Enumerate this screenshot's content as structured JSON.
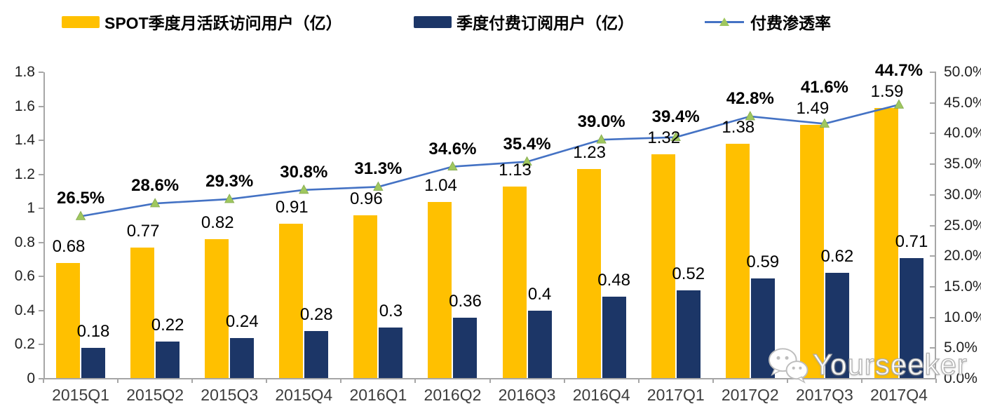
{
  "legend": {
    "items": [
      {
        "label": "SPOT季度月活跃访问用户（亿）",
        "swatch_color": "#FFC000"
      },
      {
        "label": "季度付费订阅用户（亿）",
        "swatch_color": "#1C3667"
      },
      {
        "label": "付费渗透率",
        "line_color": "#4472C4",
        "marker_color": "#9FC75F",
        "marker": "triangle-icon"
      }
    ]
  },
  "chart_data": {
    "type": "bar",
    "subtype": "bar-line-combo",
    "categories": [
      "2015Q1",
      "2015Q2",
      "2015Q3",
      "2015Q4",
      "2016Q1",
      "2016Q2",
      "2016Q3",
      "2016Q4",
      "2017Q1",
      "2017Q2",
      "2017Q3",
      "2017Q4"
    ],
    "series": [
      {
        "name": "SPOT季度月活跃访问用户（亿）",
        "chart_type": "bar",
        "color": "#FFC000",
        "values": [
          0.68,
          0.77,
          0.82,
          0.91,
          0.96,
          1.04,
          1.13,
          1.23,
          1.32,
          1.38,
          1.49,
          1.59
        ],
        "labels": [
          "0.68",
          "0.77",
          "0.82",
          "0.91",
          "0.96",
          "1.04",
          "1.13",
          "1.23",
          "1.32",
          "1.38",
          "1.49",
          "1.59"
        ]
      },
      {
        "name": "季度付费订阅用户（亿）",
        "chart_type": "bar",
        "color": "#1C3667",
        "values": [
          0.18,
          0.22,
          0.24,
          0.28,
          0.3,
          0.36,
          0.4,
          0.48,
          0.52,
          0.59,
          0.62,
          0.71
        ],
        "labels": [
          "0.18",
          "0.22",
          "0.24",
          "0.28",
          "0.3",
          "0.36",
          "0.4",
          "0.48",
          "0.52",
          "0.59",
          "0.62",
          "0.71"
        ]
      },
      {
        "name": "付费渗透率",
        "chart_type": "line",
        "color": "#4472C4",
        "marker_color": "#9FC75F",
        "values": [
          26.5,
          28.6,
          29.3,
          30.8,
          31.3,
          34.6,
          35.4,
          39.0,
          39.4,
          42.8,
          41.6,
          44.7
        ],
        "labels": [
          "26.5%",
          "28.6%",
          "29.3%",
          "30.8%",
          "31.3%",
          "34.6%",
          "35.4%",
          "39.0%",
          "39.4%",
          "42.8%",
          "41.6%",
          "44.7%"
        ]
      }
    ],
    "left_axis": {
      "min": 0,
      "max": 1.8,
      "step": 0.2,
      "ticks": [
        "0",
        "0.2",
        "0.4",
        "0.6",
        "0.8",
        "1",
        "1.2",
        "1.4",
        "1.6",
        "1.8"
      ]
    },
    "right_axis": {
      "min": 0,
      "max": 50,
      "step": 5,
      "ticks": [
        "0.0%",
        "5.0%",
        "10.0%",
        "15.0%",
        "20.0%",
        "25.0%",
        "30.0%",
        "35.0%",
        "40.0%",
        "45.0%",
        "50.0%"
      ]
    },
    "grid": false,
    "legend_position": "top"
  },
  "watermark": {
    "text": "Yourseeker",
    "icon": "wechat-icon"
  }
}
